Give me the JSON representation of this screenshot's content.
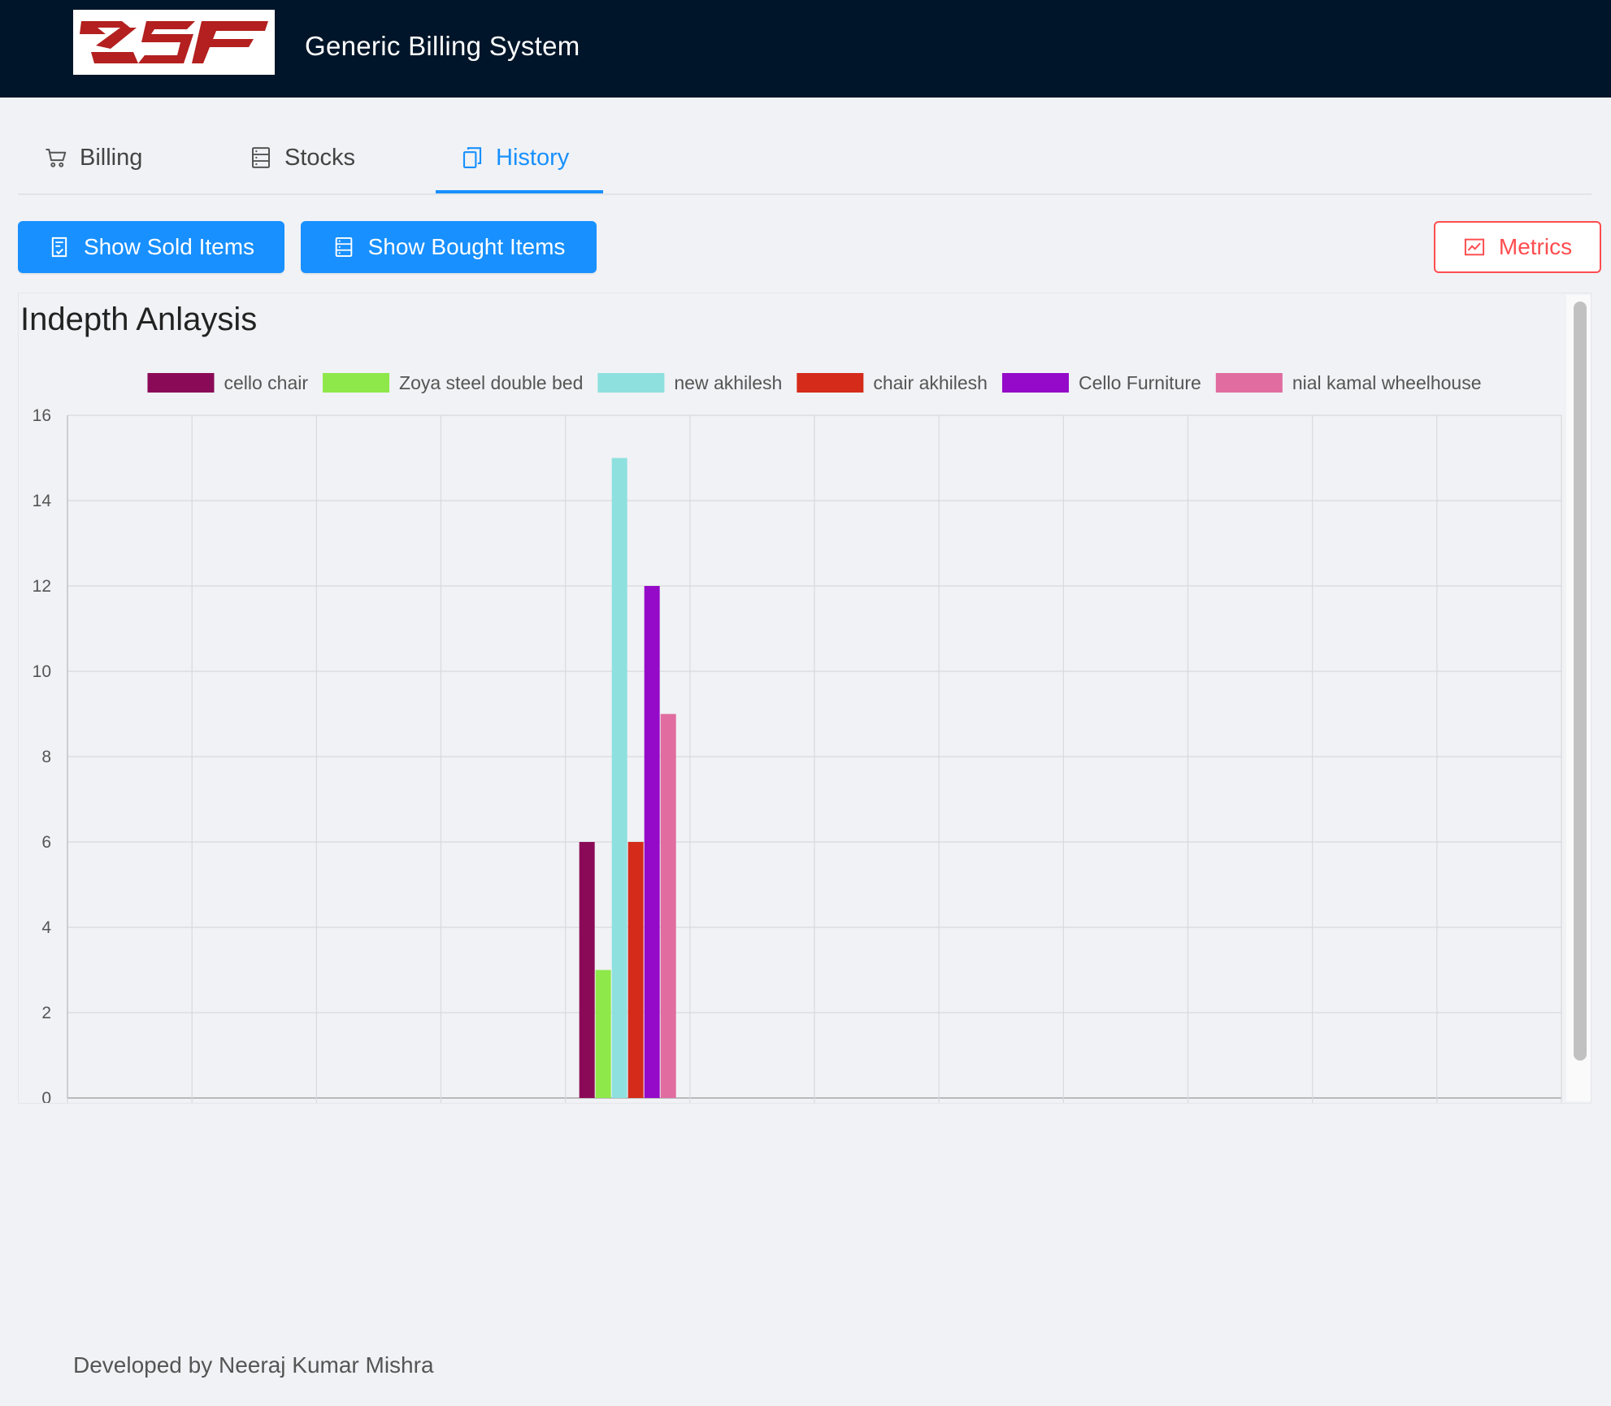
{
  "header": {
    "title": "Generic Billing System",
    "logo_text": "ZSF"
  },
  "tabs": [
    {
      "label": "Billing",
      "icon": "cart-icon",
      "active": false
    },
    {
      "label": "Stocks",
      "icon": "database-icon",
      "active": false
    },
    {
      "label": "History",
      "icon": "copy-icon",
      "active": true
    }
  ],
  "toolbar": {
    "sold_label": "Show Sold Items",
    "bought_label": "Show Bought Items",
    "metrics_label": "Metrics"
  },
  "panel": {
    "title": "Indepth Anlaysis"
  },
  "chart_data": {
    "type": "bar",
    "title": "Indepth Anlaysis",
    "xlabel": "",
    "ylabel": "",
    "ylim": [
      0,
      16
    ],
    "yticks": [
      0,
      2,
      4,
      6,
      8,
      10,
      12,
      14,
      16
    ],
    "grid": true,
    "legend_position": "top",
    "categories": [
      "",
      "",
      "",
      "",
      "",
      "",
      "",
      "",
      "",
      "",
      "",
      "",
      ""
    ],
    "group_category_index": 4,
    "series": [
      {
        "name": "cello chair",
        "color": "#8b0a57",
        "value": 6
      },
      {
        "name": "Zoya steel double bed",
        "color": "#8ee84a",
        "value": 3
      },
      {
        "name": "new akhilesh",
        "color": "#8ee0df",
        "value": 15
      },
      {
        "name": "chair akhilesh",
        "color": "#d52b1a",
        "value": 6
      },
      {
        "name": "Cello Furniture",
        "color": "#940ac8",
        "value": 12
      },
      {
        "name": "nial kamal wheelhouse",
        "color": "#e06ca0",
        "value": 9
      }
    ]
  },
  "colors": {
    "header_bg": "#001529",
    "primary": "#1890ff",
    "danger": "#ff4d4f",
    "logo_red": "#b3201f"
  },
  "footer": {
    "text": "Developed by Neeraj Kumar Mishra"
  }
}
